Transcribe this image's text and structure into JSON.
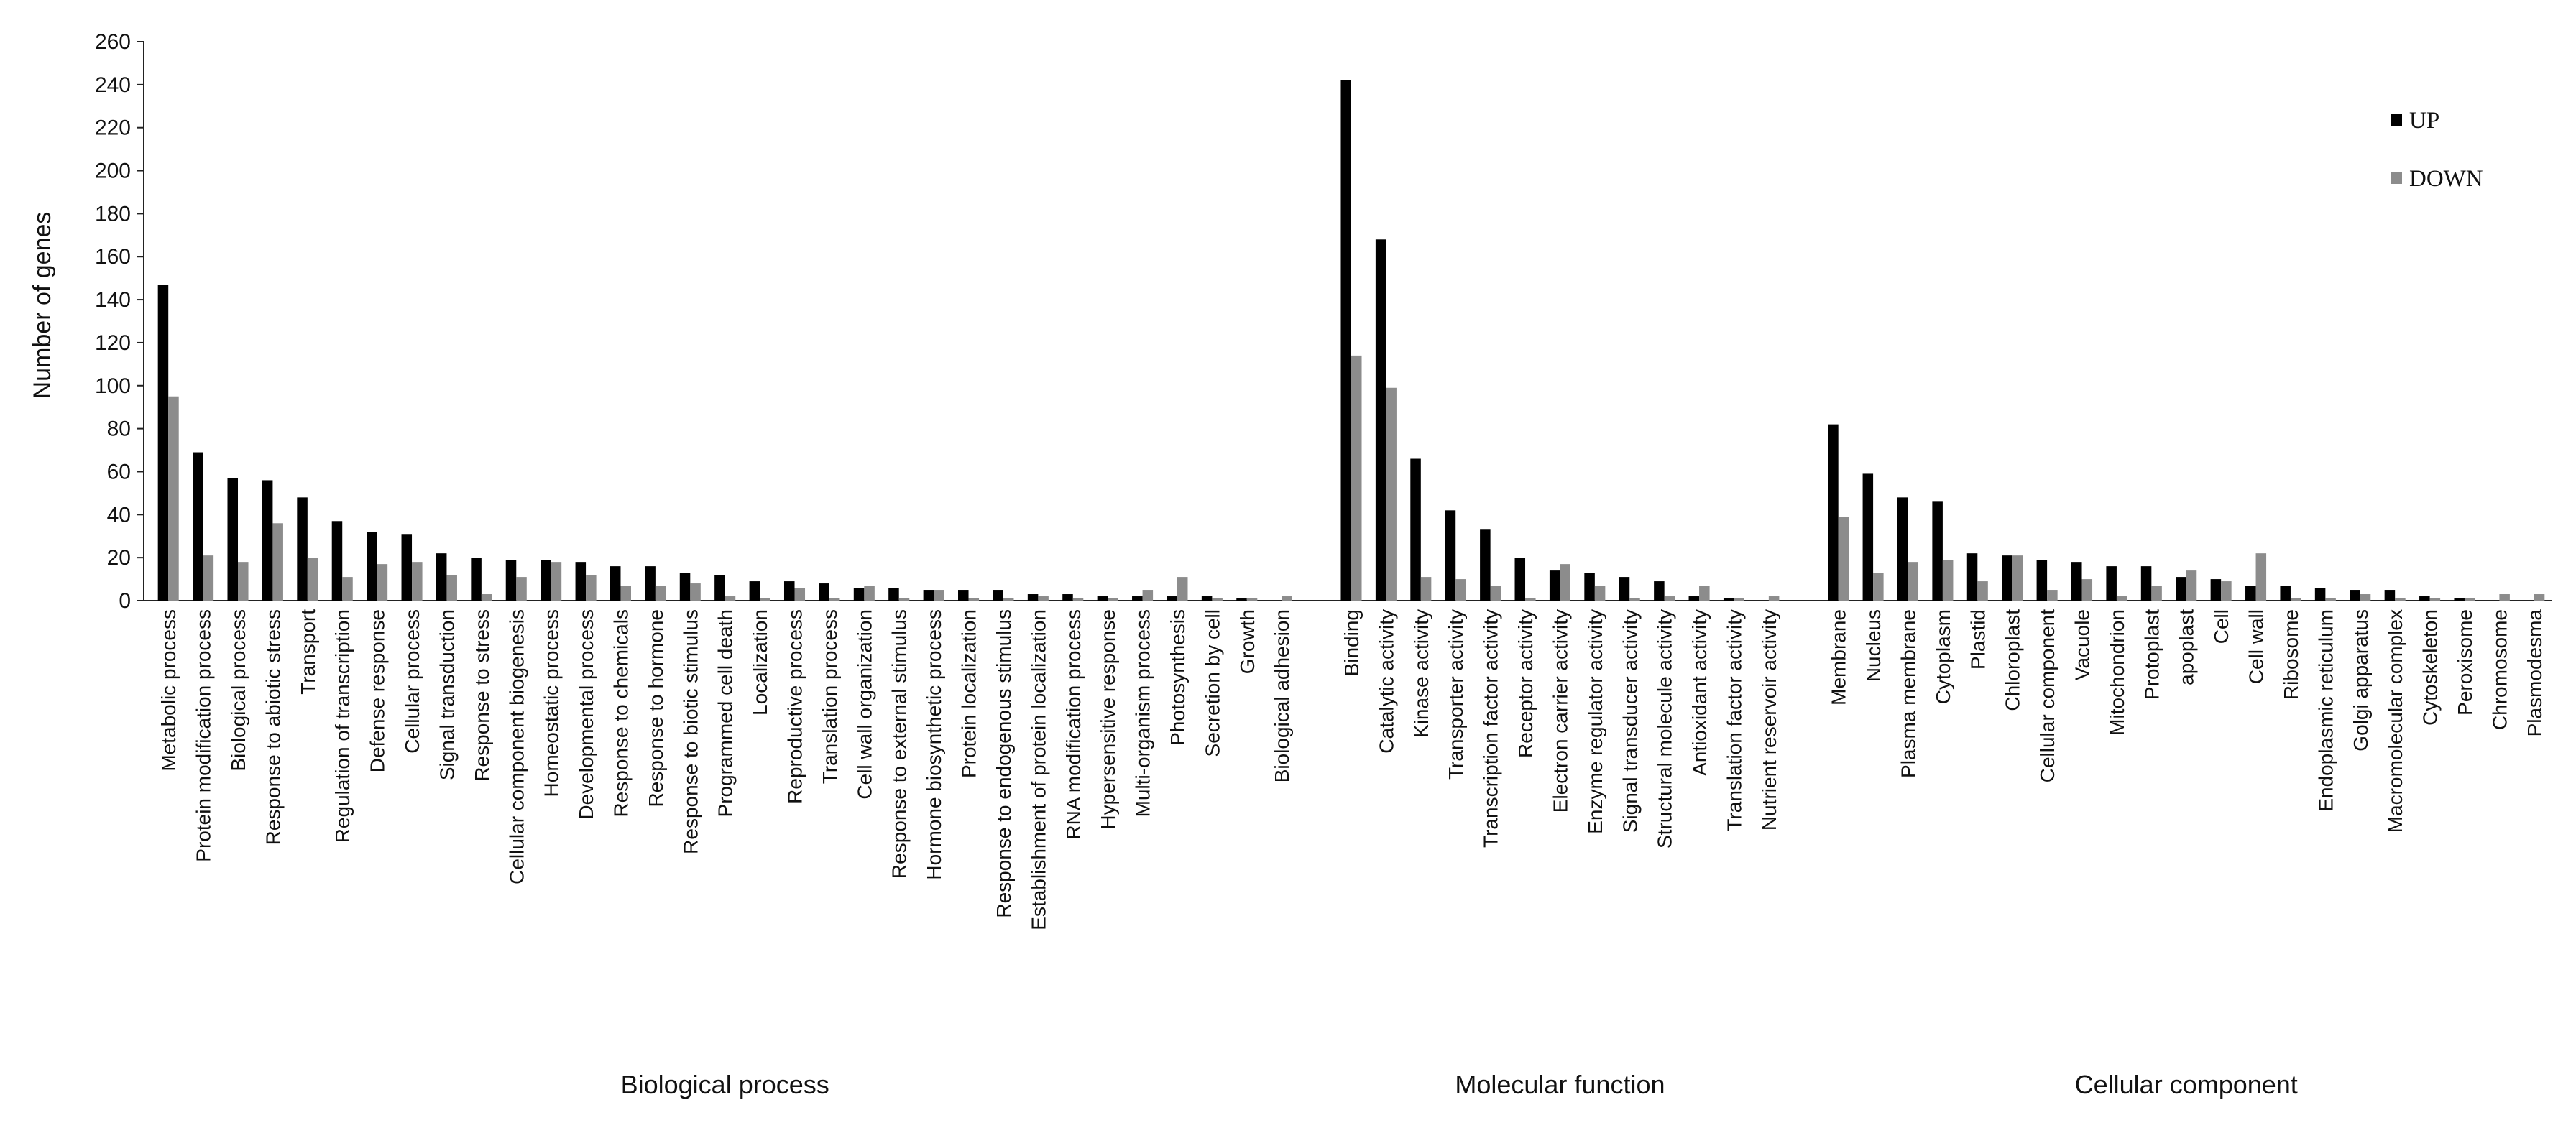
{
  "chart_data": {
    "type": "bar",
    "title": "",
    "xlabel": "",
    "ylabel": "Number of genes",
    "ylim": [
      0,
      260
    ],
    "yticks": [
      0,
      20,
      40,
      60,
      80,
      100,
      120,
      140,
      160,
      180,
      200,
      220,
      240,
      260
    ],
    "legend_position": "top-right",
    "colors": {
      "UP": "#000000",
      "DOWN": "#8c8c8c"
    },
    "groups": [
      "Biological process",
      "Molecular function",
      "Cellular component"
    ],
    "categories": [
      "Metabolic process",
      "Protein modification process",
      "Biological process",
      "Response to abiotic stress",
      "Transport",
      "Regulation of transcription",
      "Defense response",
      "Cellular process",
      "Signal transduction",
      "Response to stress",
      "Cellular component biogenesis",
      "Homeostatic process",
      "Developmental process",
      "Response to chemicals",
      "Response to hormone",
      "Response to biotic stimulus",
      "Programmed cell death",
      "Localization",
      "Reproductive process",
      "Translation process",
      "Cell wall organization",
      "Response to external stimulus",
      "Hormone biosynthetic process",
      "Protein localization",
      "Response to endogenous stimulus",
      "Establishment of protein localization",
      "RNA modification process",
      "Hypersensitive response",
      "Multi-organism process",
      "Photosynthesis",
      "Secretion by cell",
      "Growth",
      "Biological adhesion",
      "Binding",
      "Catalytic activity",
      "Kinase activity",
      "Transporter activity",
      "Transcription factor activity",
      "Receptor activity",
      "Electron carrier activity",
      "Enzyme  regulator activity",
      "Signal transducer activity",
      "Structural molecule activity",
      "Antioxidant activity",
      "Translation factor activity",
      "Nutrient reservoir activity",
      "Membrane",
      "Nucleus",
      "Plasma  membrane",
      "Cytoplasm",
      "Plastid",
      "Chloroplast",
      "Cellular component",
      "Vacuole",
      "Mitochondrion",
      "Protoplast",
      "apoplast",
      "Cell",
      "Cell wall",
      "Ribosome",
      "Endoplasmic reticulum",
      "Golgi apparatus",
      "Macromolecular complex",
      "Cytoskeleton",
      "Peroxisome",
      "Chromosome",
      "Plasmodesma"
    ],
    "category_group": [
      0,
      0,
      0,
      0,
      0,
      0,
      0,
      0,
      0,
      0,
      0,
      0,
      0,
      0,
      0,
      0,
      0,
      0,
      0,
      0,
      0,
      0,
      0,
      0,
      0,
      0,
      0,
      0,
      0,
      0,
      0,
      0,
      0,
      1,
      1,
      1,
      1,
      1,
      1,
      1,
      1,
      1,
      1,
      1,
      1,
      1,
      2,
      2,
      2,
      2,
      2,
      2,
      2,
      2,
      2,
      2,
      2,
      2,
      2,
      2,
      2,
      2,
      2,
      2,
      2,
      2,
      2
    ],
    "series": [
      {
        "name": "UP",
        "values": [
          147,
          69,
          57,
          56,
          48,
          37,
          32,
          31,
          22,
          20,
          19,
          19,
          18,
          16,
          16,
          13,
          12,
          9,
          9,
          8,
          6,
          6,
          5,
          5,
          5,
          3,
          3,
          2,
          2,
          2,
          2,
          1,
          0,
          242,
          168,
          66,
          42,
          33,
          20,
          14,
          13,
          11,
          9,
          2,
          1,
          0,
          82,
          59,
          48,
          46,
          22,
          21,
          19,
          18,
          16,
          16,
          11,
          10,
          7,
          7,
          6,
          5,
          5,
          2,
          1,
          0,
          0
        ]
      },
      {
        "name": "DOWN",
        "values": [
          95,
          21,
          18,
          36,
          20,
          11,
          17,
          18,
          12,
          3,
          11,
          18,
          12,
          7,
          7,
          8,
          2,
          1,
          6,
          1,
          7,
          1,
          5,
          1,
          1,
          2,
          1,
          1,
          5,
          11,
          1,
          1,
          2,
          114,
          99,
          11,
          10,
          7,
          1,
          17,
          7,
          1,
          2,
          7,
          1,
          2,
          39,
          13,
          18,
          19,
          9,
          21,
          5,
          10,
          2,
          7,
          14,
          9,
          22,
          1,
          1,
          3,
          1,
          1,
          1,
          3,
          3
        ]
      }
    ]
  }
}
